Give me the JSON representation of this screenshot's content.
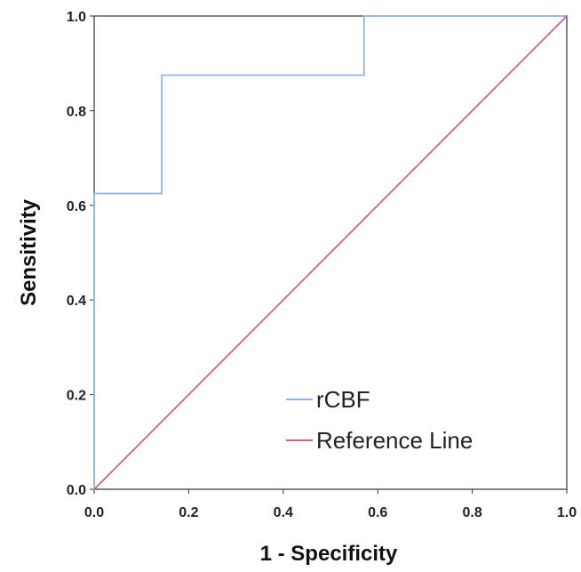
{
  "chart_data": {
    "type": "line",
    "title": "",
    "xlabel": "1 - Specificity",
    "ylabel": "Sensitivity",
    "xlim": [
      0.0,
      1.0
    ],
    "ylim": [
      0.0,
      1.0
    ],
    "x_ticks": [
      "0.0",
      "0.2",
      "0.4",
      "0.6",
      "0.8",
      "1.0"
    ],
    "y_ticks": [
      "0.0",
      "0.2",
      "0.4",
      "0.6",
      "0.8",
      "1.0"
    ],
    "grid": false,
    "legend_position": "bottom-right",
    "series": [
      {
        "name": "rCBF",
        "color": "#8fb4e8",
        "style": "step",
        "x": [
          0.0,
          0.0,
          0.143,
          0.143,
          0.571,
          0.571,
          1.0
        ],
        "y": [
          0.0,
          0.625,
          0.625,
          0.875,
          0.875,
          1.0,
          1.0
        ]
      },
      {
        "name": "Reference Line",
        "color": "#d9607a",
        "style": "line",
        "x": [
          0.0,
          1.0
        ],
        "y": [
          0.0,
          1.0
        ]
      }
    ]
  }
}
